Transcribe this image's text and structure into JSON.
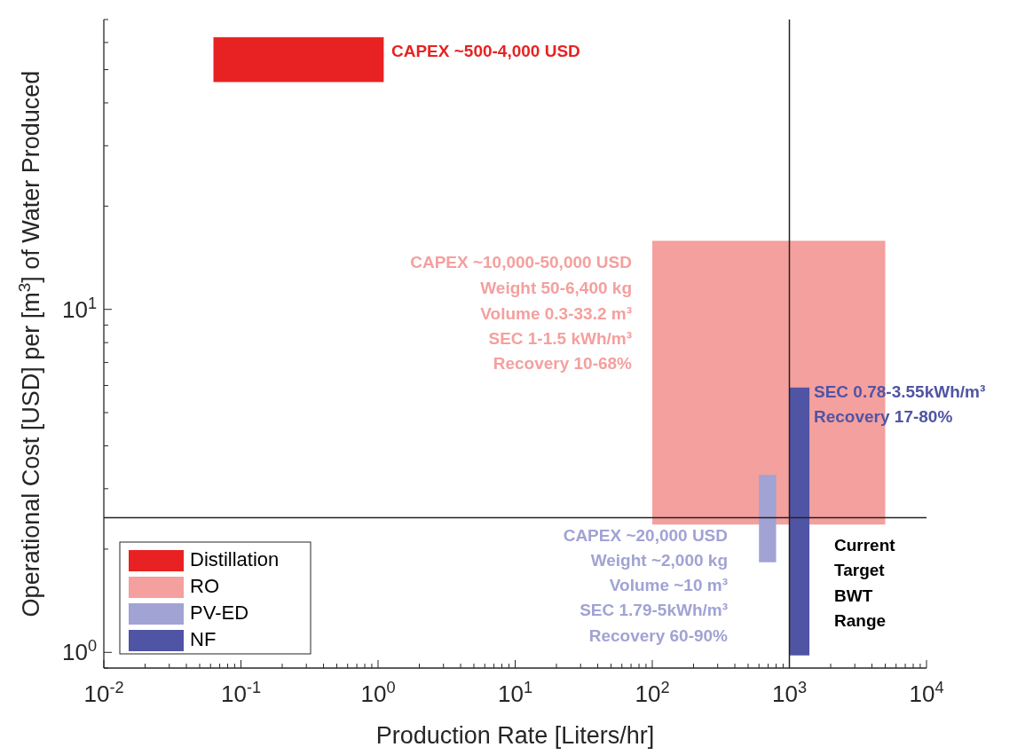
{
  "chart_data": {
    "type": "line",
    "xlabel": "Production Rate [Liters/hr]",
    "ylabel": "Operational Cost [USD] per [m$^{3}$] of Water Produced",
    "log": "xy",
    "xlim": [
      0.01,
      10000
    ],
    "ylim": [
      0.9,
      70
    ],
    "xticks": [
      {
        "value": 0.01,
        "label": "10$^{-2}$"
      },
      {
        "value": 0.1,
        "label": "10$^{-1}$"
      },
      {
        "value": 1,
        "label": "10$^{0}$"
      },
      {
        "value": 10,
        "label": "10$^{1}$"
      },
      {
        "value": 100,
        "label": "10$^{2}$"
      },
      {
        "value": 1000,
        "label": "10$^{3}$"
      },
      {
        "value": 10000,
        "label": "10$^{4}$"
      }
    ],
    "yticks": [
      {
        "value": 1,
        "label": "10$^{0}$"
      },
      {
        "value": 10,
        "label": "10$^{1}$"
      }
    ],
    "series": [
      {
        "name": "Distillation",
        "color": "#e82222",
        "x": [
          0.063,
          1.1
        ],
        "values": [
          62,
          62
        ],
        "lower": [
          46,
          46
        ],
        "upper": [
          62,
          62
        ]
      },
      {
        "name": "RO",
        "color": "#f4a09e",
        "x": [
          100,
          5000
        ],
        "values": [
          15.8,
          15.8
        ],
        "lower": [
          2.36,
          2.36
        ],
        "upper": [
          15.8,
          15.8
        ]
      },
      {
        "name": "PV-ED",
        "color": "#a0a3d3",
        "x": [
          600,
          800
        ],
        "values": [
          3.28,
          3.28
        ],
        "lower": [
          1.83,
          1.83
        ],
        "upper": [
          3.28,
          3.28
        ]
      },
      {
        "name": "NF",
        "color": "#5054a4",
        "x": [
          1000,
          1400
        ],
        "values": [
          5.9,
          5.9
        ],
        "lower": [
          0.98,
          0.98
        ],
        "upper": [
          5.9,
          5.9
        ]
      }
    ],
    "ref_lines": [
      {
        "axis": "x",
        "value": 1000,
        "color": "#222222"
      },
      {
        "axis": "y",
        "value": 2.47,
        "color": "#222222"
      }
    ],
    "legend": "bottom left",
    "annotations": [
      "CAPEX ~500-4,000 USD",
      "CAPEX ~10,000-50,000 USD",
      "Weight 50-6,400 kg",
      "Volume 0.3-33.2 m³",
      "SEC 1-1.5 kWh/m³",
      "Recovery 10-68%",
      "SEC 0.78-3.55kWh/m³",
      "Recovery 17-80%",
      "CAPEX ~20,000 USD",
      "Weight ~2,000 kg",
      "Volume ~10 m³",
      "SEC 1.79-5kWh/m³",
      "Recovery 60-90%",
      "Current",
      "Target",
      "BWT",
      "Range"
    ]
  }
}
